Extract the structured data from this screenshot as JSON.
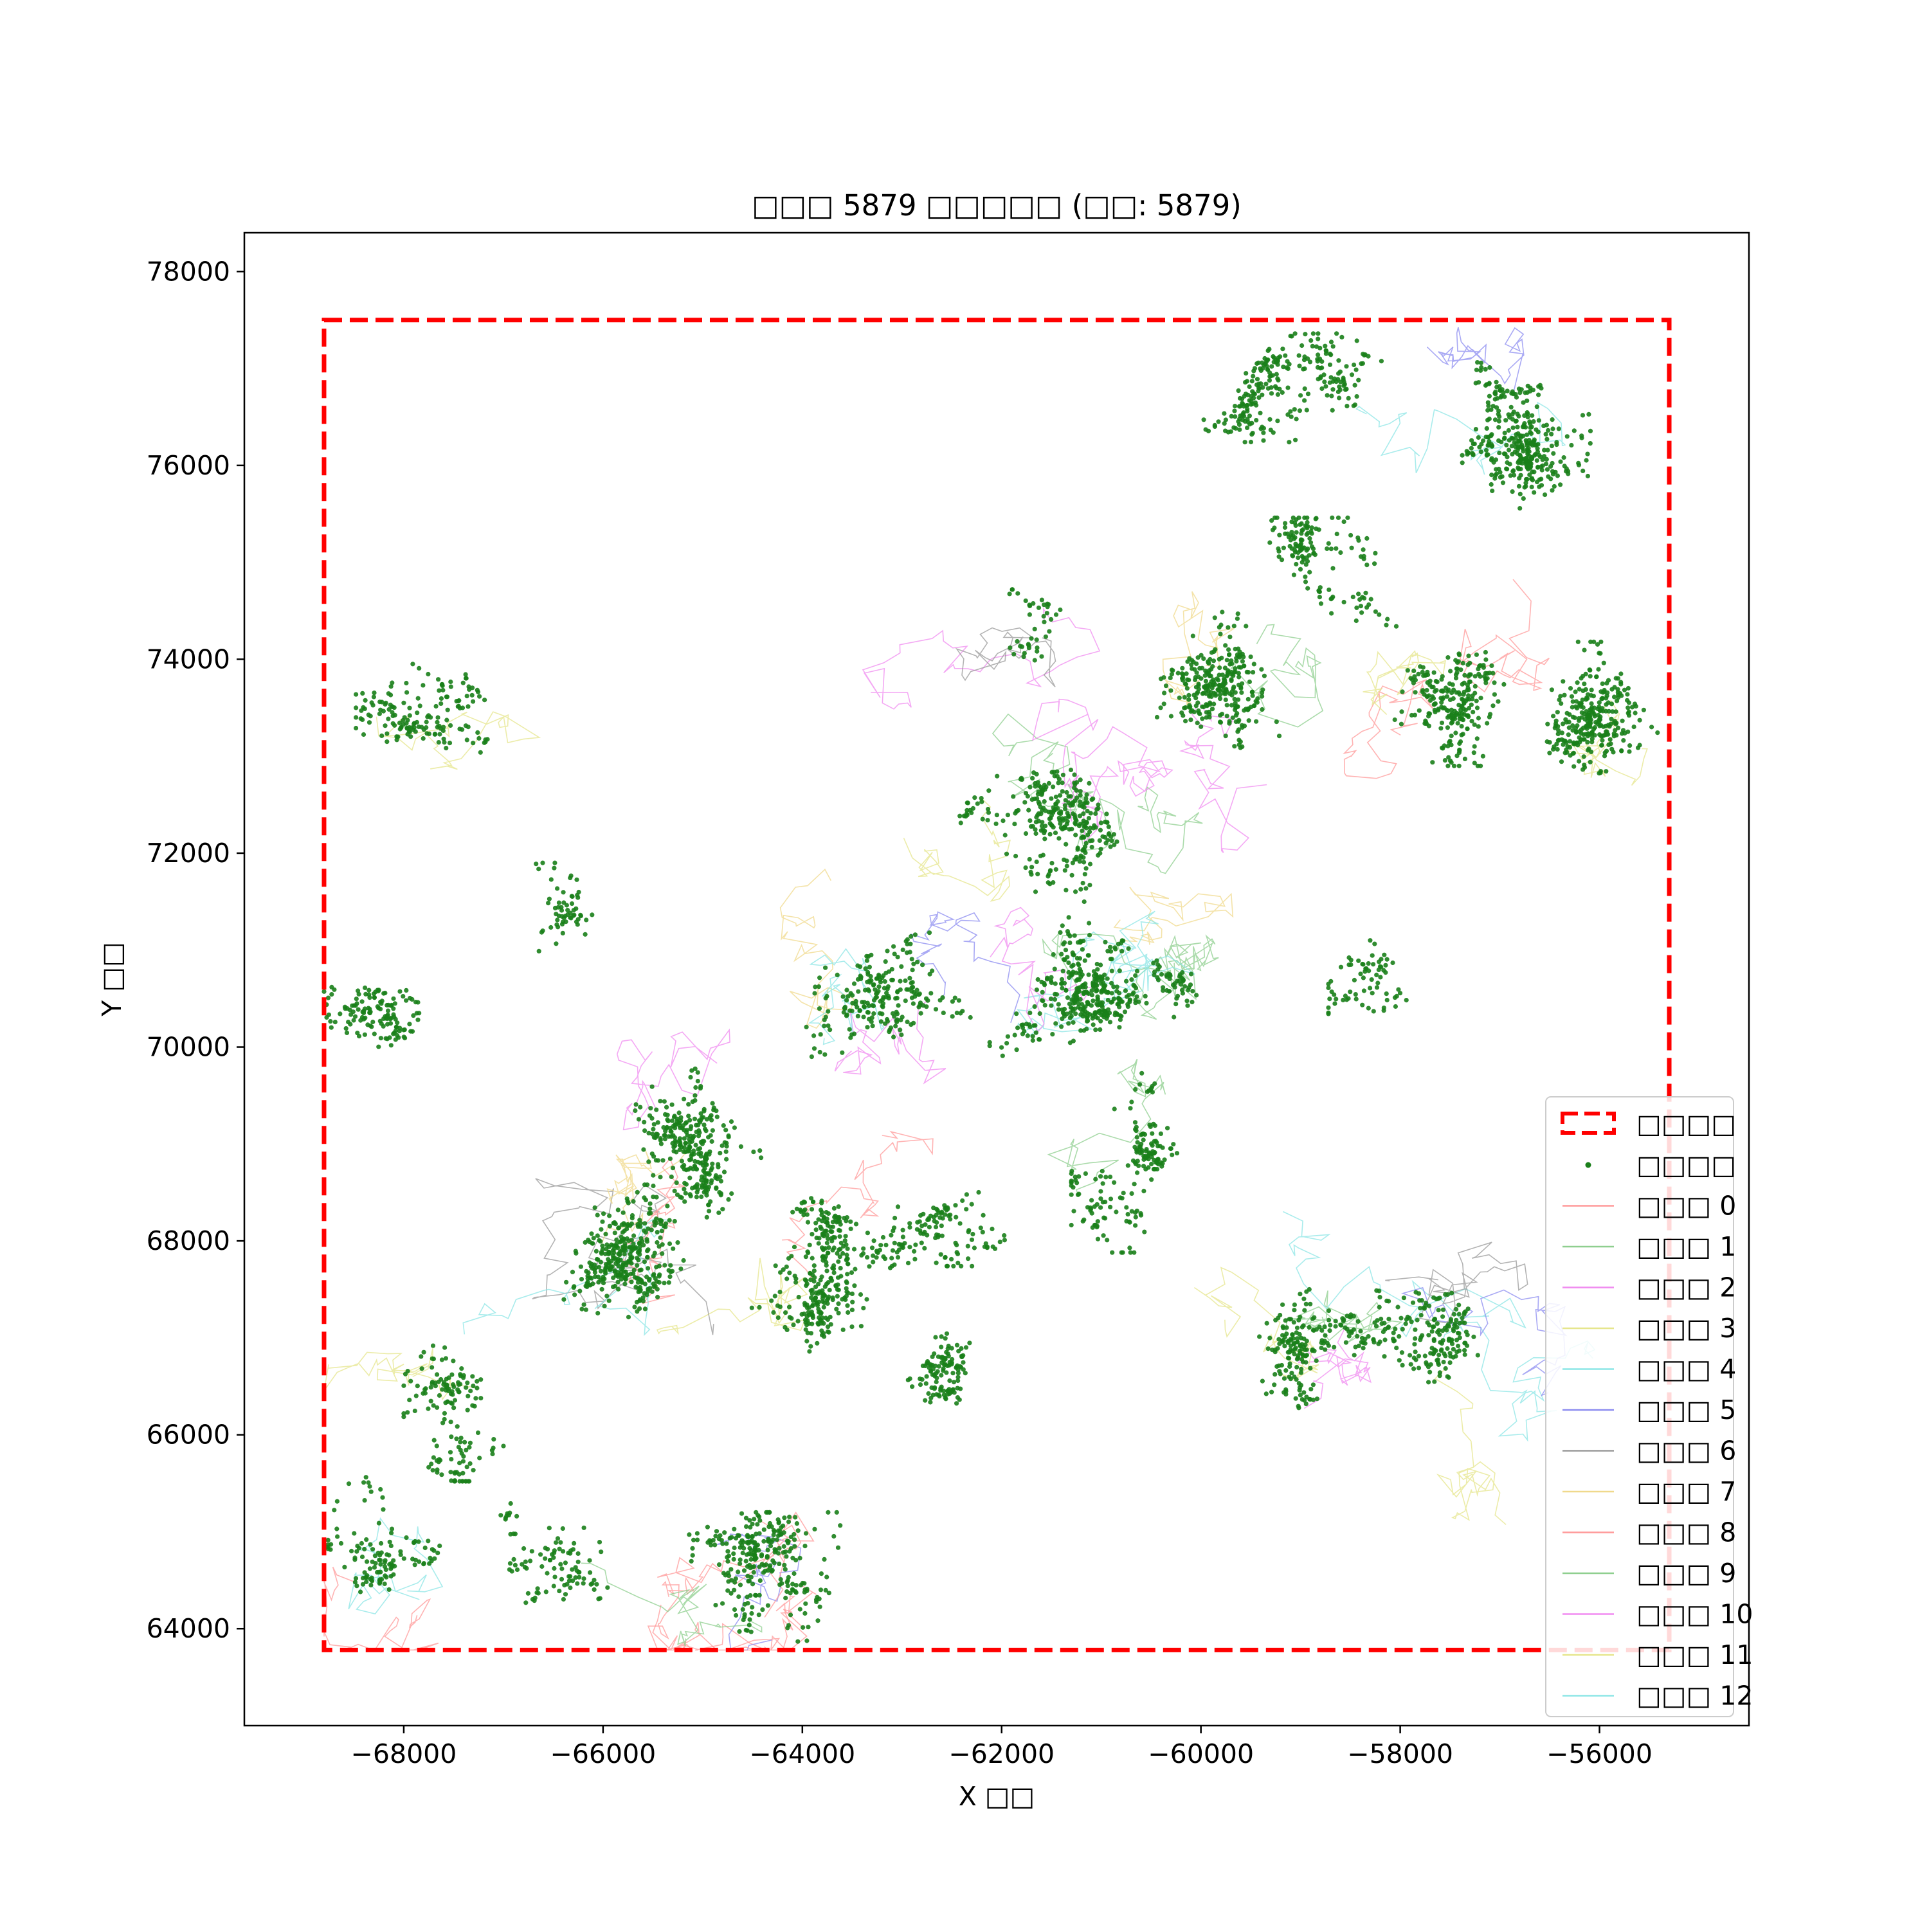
{
  "chart_data": {
    "type": "scatter",
    "title": "□□□ 5879 □□□□□ (□□: 5879)",
    "xlabel": "X □□",
    "ylabel": "Y □□",
    "xlim": [
      -69600,
      -54500
    ],
    "ylim": [
      63000,
      78400
    ],
    "xticks": [
      {
        "value": -68000,
        "label": "−68000"
      },
      {
        "value": -66000,
        "label": "−66000"
      },
      {
        "value": -64000,
        "label": "−64000"
      },
      {
        "value": -62000,
        "label": "−62000"
      },
      {
        "value": -60000,
        "label": "−60000"
      },
      {
        "value": -58000,
        "label": "−58000"
      },
      {
        "value": -56000,
        "label": "−56000"
      }
    ],
    "yticks": [
      {
        "value": 64000,
        "label": "64000"
      },
      {
        "value": 66000,
        "label": "66000"
      },
      {
        "value": 68000,
        "label": "68000"
      },
      {
        "value": 70000,
        "label": "70000"
      },
      {
        "value": 72000,
        "label": "72000"
      },
      {
        "value": 74000,
        "label": "74000"
      },
      {
        "value": 76000,
        "label": "76000"
      },
      {
        "value": 78000,
        "label": "78000"
      }
    ],
    "grid": false,
    "legend_position": "lower right",
    "boundary": {
      "name": "□□□□",
      "xmin": -68800,
      "xmax": -55300,
      "ymin": 63780,
      "ymax": 77500,
      "color": "#ff0000",
      "style": "dashed"
    },
    "points_series": {
      "name": "□□□□",
      "color": "#1a7f1a",
      "count": 5879,
      "clusters": [
        {
          "cx": -67500,
          "cy": 73300,
          "sx": 700,
          "sy": 500,
          "n": 160
        },
        {
          "cx": -68300,
          "cy": 70300,
          "sx": 400,
          "sy": 800,
          "n": 150
        },
        {
          "cx": -66200,
          "cy": 71200,
          "sx": 500,
          "sy": 500,
          "n": 60
        },
        {
          "cx": -65100,
          "cy": 69000,
          "sx": 600,
          "sy": 700,
          "n": 300
        },
        {
          "cx": -65800,
          "cy": 67600,
          "sx": 800,
          "sy": 700,
          "n": 350
        },
        {
          "cx": -67300,
          "cy": 66500,
          "sx": 500,
          "sy": 700,
          "n": 150
        },
        {
          "cx": -68200,
          "cy": 64900,
          "sx": 400,
          "sy": 600,
          "n": 120
        },
        {
          "cx": -66500,
          "cy": 64800,
          "sx": 400,
          "sy": 400,
          "n": 100
        },
        {
          "cx": -64600,
          "cy": 64500,
          "sx": 700,
          "sy": 500,
          "n": 280
        },
        {
          "cx": -63800,
          "cy": 67600,
          "sx": 800,
          "sy": 600,
          "n": 320
        },
        {
          "cx": -62600,
          "cy": 66700,
          "sx": 500,
          "sy": 500,
          "n": 120
        },
        {
          "cx": -62600,
          "cy": 68300,
          "sx": 500,
          "sy": 400,
          "n": 120
        },
        {
          "cx": -63200,
          "cy": 70600,
          "sx": 700,
          "sy": 500,
          "n": 220
        },
        {
          "cx": -61000,
          "cy": 70500,
          "sx": 800,
          "sy": 700,
          "n": 400
        },
        {
          "cx": -61300,
          "cy": 72300,
          "sx": 800,
          "sy": 700,
          "n": 300
        },
        {
          "cx": -60600,
          "cy": 69300,
          "sx": 500,
          "sy": 400,
          "n": 100
        },
        {
          "cx": -60600,
          "cy": 68300,
          "sx": 500,
          "sy": 300,
          "n": 80
        },
        {
          "cx": -58300,
          "cy": 70800,
          "sx": 300,
          "sy": 400,
          "n": 70
        },
        {
          "cx": -59700,
          "cy": 73800,
          "sx": 800,
          "sy": 600,
          "n": 300
        },
        {
          "cx": -57700,
          "cy": 73600,
          "sx": 700,
          "sy": 500,
          "n": 240
        },
        {
          "cx": -58700,
          "cy": 74900,
          "sx": 700,
          "sy": 400,
          "n": 150
        },
        {
          "cx": -59100,
          "cy": 76800,
          "sx": 900,
          "sy": 400,
          "n": 250
        },
        {
          "cx": -56800,
          "cy": 76300,
          "sx": 800,
          "sy": 600,
          "n": 350
        },
        {
          "cx": -55900,
          "cy": 73200,
          "sx": 500,
          "sy": 700,
          "n": 300
        },
        {
          "cx": -59200,
          "cy": 66800,
          "sx": 800,
          "sy": 500,
          "n": 200
        },
        {
          "cx": -57800,
          "cy": 67200,
          "sx": 700,
          "sy": 600,
          "n": 180
        },
        {
          "cx": -61500,
          "cy": 74300,
          "sx": 300,
          "sy": 300,
          "n": 40
        }
      ]
    },
    "trajectory_series": [
      {
        "name": "□□□ 0",
        "color": "#ff9a9a"
      },
      {
        "name": "□□□ 1",
        "color": "#8fcf8f"
      },
      {
        "name": "□□□ 2",
        "color": "#f08cf0"
      },
      {
        "name": "□□□ 3",
        "color": "#e6e68c"
      },
      {
        "name": "□□□ 4",
        "color": "#8ce6e6"
      },
      {
        "name": "□□□ 5",
        "color": "#8c8cf0"
      },
      {
        "name": "□□□ 6",
        "color": "#9a9a9a"
      },
      {
        "name": "□□□ 7",
        "color": "#f0d98c"
      },
      {
        "name": "□□□ 8",
        "color": "#ff9a9a"
      },
      {
        "name": "□□□ 9",
        "color": "#8fcf8f"
      },
      {
        "name": "□□□ 10",
        "color": "#f08cf0"
      },
      {
        "name": "□□□ 11",
        "color": "#e6e68c"
      },
      {
        "name": "□□□ 12",
        "color": "#8ce6e6"
      }
    ]
  }
}
